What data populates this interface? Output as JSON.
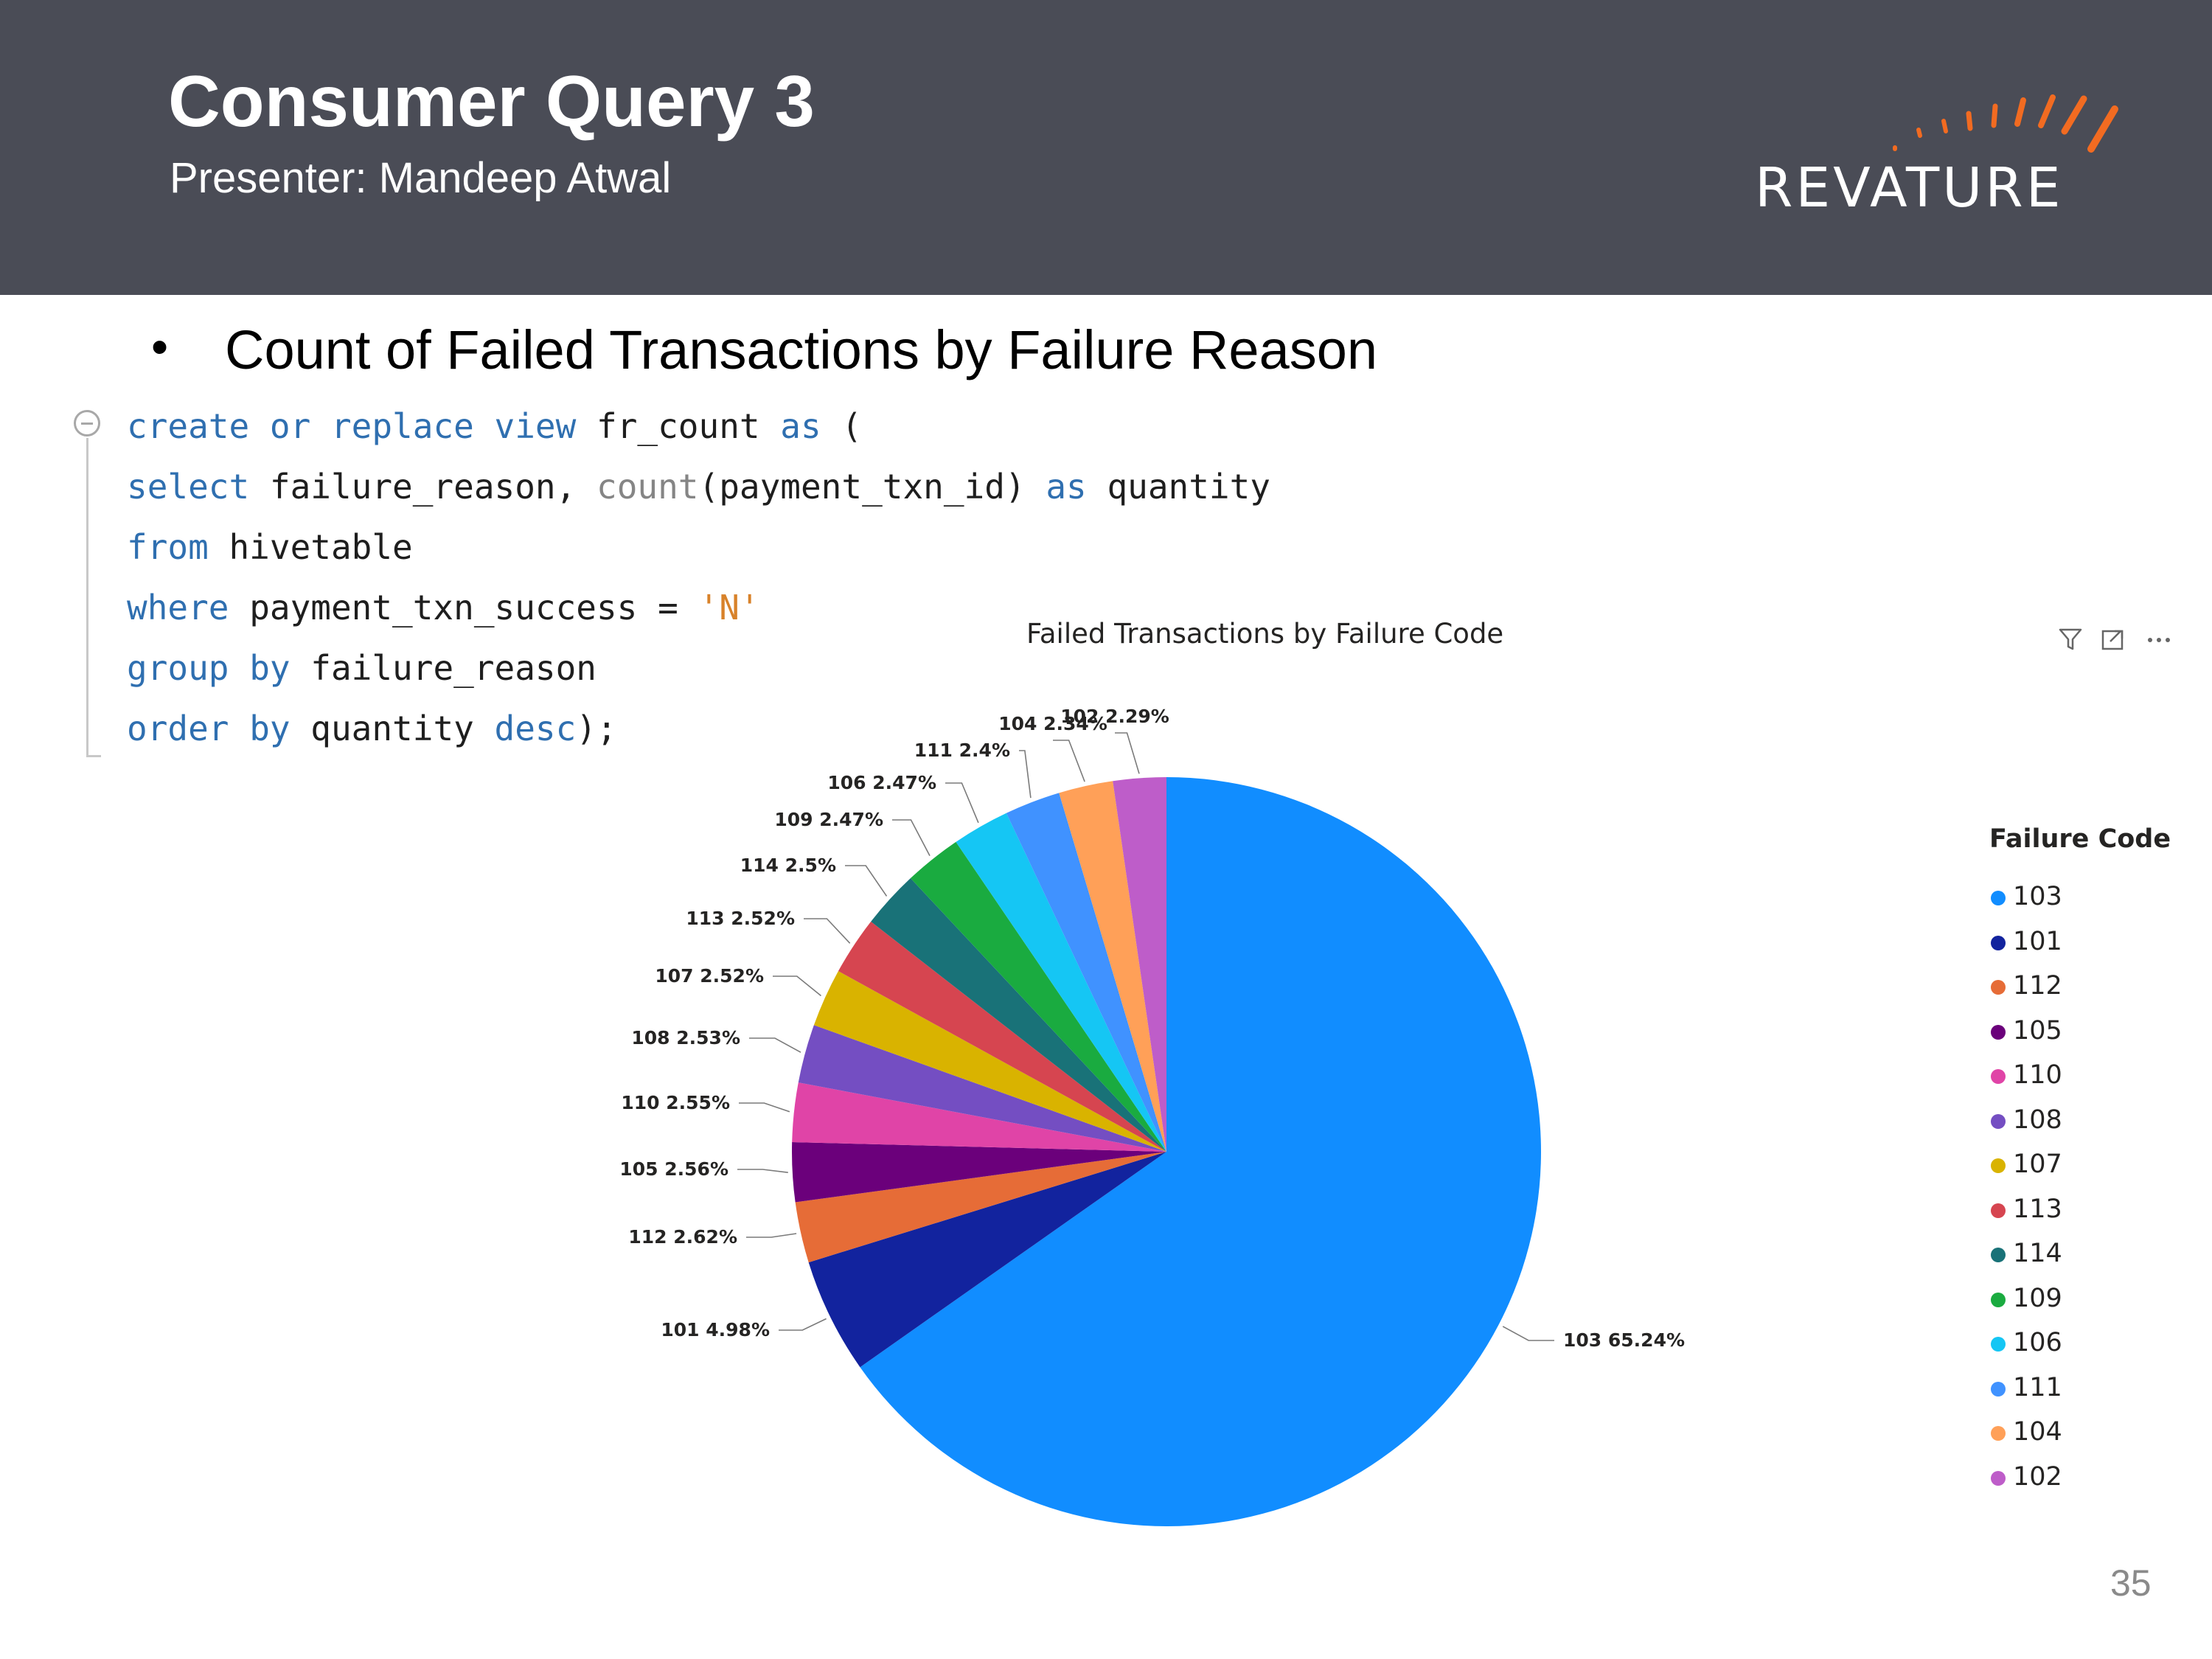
{
  "header": {
    "title": "Consumer Query 3",
    "subtitle": "Presenter: Mandeep Atwal",
    "logo_text": "REVATURE",
    "background_color": "#4a4c56",
    "logo_accent_color": "#f26b21"
  },
  "bullet": {
    "symbol": "•",
    "text": "Count of Failed Transactions by Failure Reason"
  },
  "code": {
    "lines": [
      "create or replace view fr_count as (",
      "select failure_reason, count(payment_txn_id) as quantity",
      "from hivetable",
      "where payment_txn_success = 'N'",
      "group by failure_reason",
      "order by quantity desc);"
    ]
  },
  "chart_toolbar": {
    "icons": [
      "filter-icon",
      "focus-mode-icon",
      "more-options-icon"
    ]
  },
  "chart_data": {
    "type": "pie",
    "title": "Failed Transactions by Failure Code",
    "legend_title": "Failure Code",
    "legend_position": "right",
    "start_angle": "12 o'clock",
    "direction": "clockwise",
    "slices": [
      {
        "label": "103",
        "percent": 65.24,
        "display": "65.24%",
        "color": "#118dff"
      },
      {
        "label": "101",
        "percent": 4.98,
        "display": "4.98%",
        "color": "#12239e"
      },
      {
        "label": "112",
        "percent": 2.62,
        "display": "2.62%",
        "color": "#e66c37"
      },
      {
        "label": "105",
        "percent": 2.56,
        "display": "2.56%",
        "color": "#6b007b"
      },
      {
        "label": "110",
        "percent": 2.55,
        "display": "2.55%",
        "color": "#e044a7"
      },
      {
        "label": "108",
        "percent": 2.53,
        "display": "2.53%",
        "color": "#744ec2"
      },
      {
        "label": "107",
        "percent": 2.52,
        "display": "2.52%",
        "color": "#d9b300"
      },
      {
        "label": "113",
        "percent": 2.52,
        "display": "2.52%",
        "color": "#d64550"
      },
      {
        "label": "114",
        "percent": 2.5,
        "display": "2.5%",
        "color": "#197278"
      },
      {
        "label": "109",
        "percent": 2.47,
        "display": "2.47%",
        "color": "#1aab40"
      },
      {
        "label": "106",
        "percent": 2.47,
        "display": "2.47%",
        "color": "#15c6f4"
      },
      {
        "label": "111",
        "percent": 2.4,
        "display": "2.4%",
        "color": "#4092ff"
      },
      {
        "label": "104",
        "percent": 2.34,
        "display": "2.34%",
        "color": "#ffa058"
      },
      {
        "label": "102",
        "percent": 2.29,
        "display": "2.29%",
        "color": "#be5dc9"
      }
    ]
  },
  "footer": {
    "page_number": "35"
  }
}
